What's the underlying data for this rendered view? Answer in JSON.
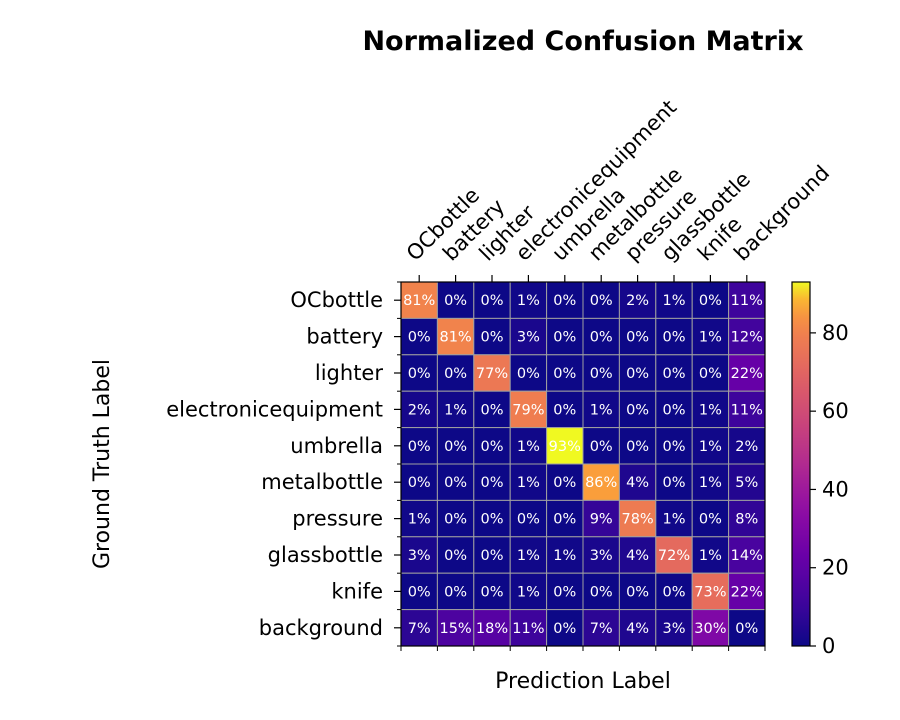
{
  "chart_data": {
    "type": "heatmap",
    "title": "Normalized Confusion Matrix",
    "xlabel": "Prediction Label",
    "ylabel": "Ground Truth Label",
    "x_categories": [
      "OCbottle",
      "battery",
      "lighter",
      "electronicequipment",
      "umbrella",
      "metalbottle",
      "pressure",
      "glassbottle",
      "knife",
      "background"
    ],
    "y_categories": [
      "OCbottle",
      "battery",
      "lighter",
      "electronicequipment",
      "umbrella",
      "metalbottle",
      "pressure",
      "glassbottle",
      "knife",
      "background"
    ],
    "values": [
      [
        81,
        0,
        0,
        1,
        0,
        0,
        2,
        1,
        0,
        11
      ],
      [
        0,
        81,
        0,
        3,
        0,
        0,
        0,
        0,
        1,
        12
      ],
      [
        0,
        0,
        77,
        0,
        0,
        0,
        0,
        0,
        0,
        22
      ],
      [
        2,
        1,
        0,
        79,
        0,
        1,
        0,
        0,
        1,
        11
      ],
      [
        0,
        0,
        0,
        1,
        93,
        0,
        0,
        0,
        1,
        2
      ],
      [
        0,
        0,
        0,
        1,
        0,
        86,
        4,
        0,
        1,
        5
      ],
      [
        1,
        0,
        0,
        0,
        0,
        9,
        78,
        1,
        0,
        8
      ],
      [
        3,
        0,
        0,
        1,
        1,
        3,
        4,
        72,
        1,
        14
      ],
      [
        0,
        0,
        0,
        1,
        0,
        0,
        0,
        0,
        73,
        22
      ],
      [
        7,
        15,
        18,
        11,
        0,
        7,
        4,
        3,
        30,
        0
      ]
    ],
    "value_suffix": "%",
    "colormap": "plasma",
    "colorbar": {
      "min": 0,
      "max": 93,
      "ticks": [
        0,
        20,
        40,
        60,
        80
      ]
    },
    "grid_color": "#a0a0a0"
  }
}
